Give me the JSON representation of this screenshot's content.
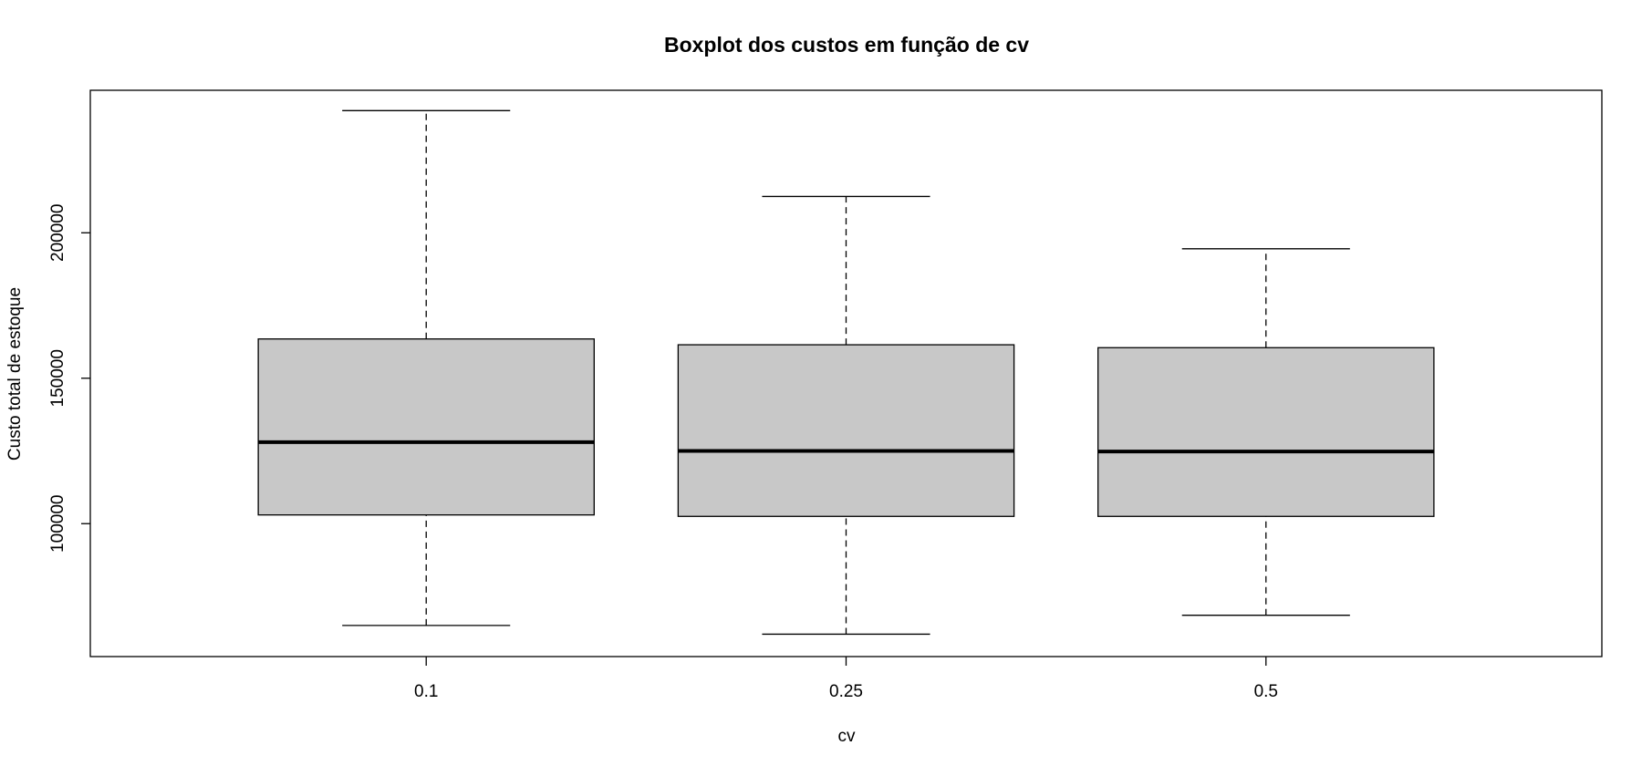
{
  "chart_data": {
    "type": "boxplot",
    "title": "Boxplot dos custos em função de cv",
    "xlabel": "cv",
    "ylabel": "Custo total de estoque",
    "categories": [
      "0.1",
      "0.25",
      "0.5"
    ],
    "boxes": [
      {
        "category": "0.1",
        "min": 65000,
        "q1": 103000,
        "median": 128000,
        "q3": 163500,
        "max": 242000
      },
      {
        "category": "0.25",
        "min": 62000,
        "q1": 102500,
        "median": 125000,
        "q3": 161500,
        "max": 212500
      },
      {
        "category": "0.5",
        "min": 68500,
        "q1": 102500,
        "median": 124800,
        "q3": 160500,
        "max": 194500
      }
    ],
    "yticks": [
      100000,
      150000,
      200000
    ],
    "ytick_labels": [
      "100000",
      "150000",
      "200000"
    ],
    "ylim": [
      54300,
      249000
    ],
    "grid": false,
    "colors": {
      "box_fill": "#c8c8c8",
      "stroke": "#000000",
      "background": "#ffffff"
    }
  }
}
